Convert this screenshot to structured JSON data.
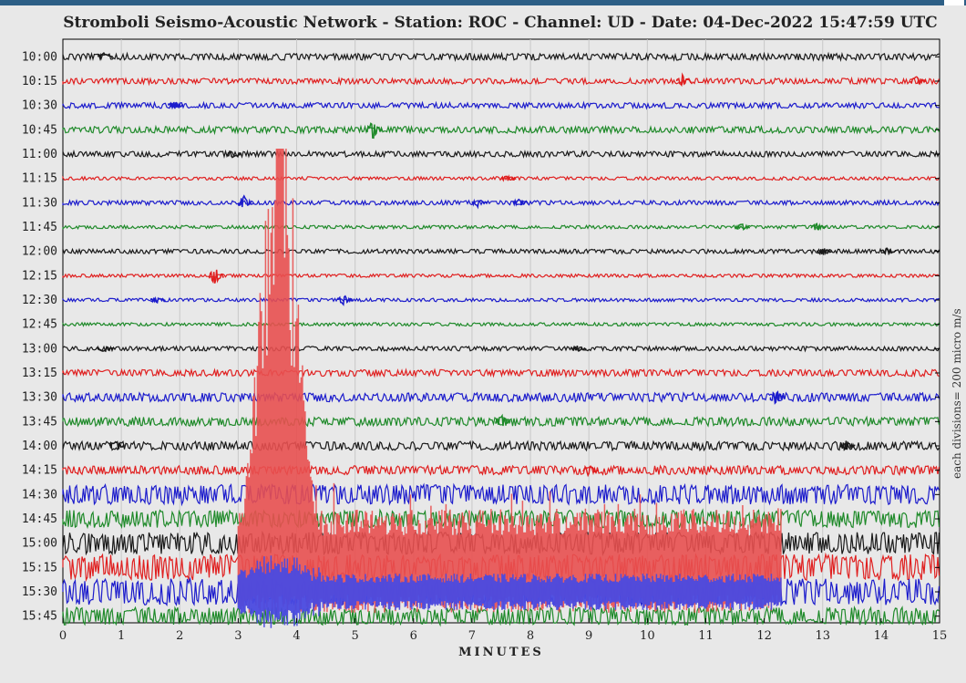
{
  "colors": {
    "black": "#1a1a1a",
    "red": "#e02020",
    "blue": "#1c1ccc",
    "green": "#1f8a2a",
    "event": "#e85050",
    "event_blue": "#4a4ae0",
    "background": "#e8e8e8",
    "grid": "#c8c8c8"
  },
  "chart_data": {
    "type": "line",
    "title": "Stromboli Seismo-Acoustic Network - Station: ROC - Channel: UD - Date: 04-Dec-2022 15:47:59 UTC",
    "xlabel": "MINUTES",
    "ylabel": "",
    "side_label": "each divisions= 200 micro m/s",
    "xlim": [
      0,
      15
    ],
    "x_ticks": [
      "0",
      "1",
      "2",
      "3",
      "4",
      "5",
      "6",
      "7",
      "8",
      "9",
      "10",
      "11",
      "12",
      "13",
      "14",
      "15"
    ],
    "grid": true,
    "traces": [
      {
        "label": "10:00",
        "color": "black",
        "amplitude": 3
      },
      {
        "label": "10:15",
        "color": "red",
        "amplitude": 2.5
      },
      {
        "label": "10:30",
        "color": "blue",
        "amplitude": 2.5
      },
      {
        "label": "10:45",
        "color": "green",
        "amplitude": 3
      },
      {
        "label": "11:00",
        "color": "black",
        "amplitude": 2.5
      },
      {
        "label": "11:15",
        "color": "red",
        "amplitude": 1.5
      },
      {
        "label": "11:30",
        "color": "blue",
        "amplitude": 2
      },
      {
        "label": "11:45",
        "color": "green",
        "amplitude": 1.5
      },
      {
        "label": "12:00",
        "color": "black",
        "amplitude": 2
      },
      {
        "label": "12:15",
        "color": "red",
        "amplitude": 1.5
      },
      {
        "label": "12:30",
        "color": "blue",
        "amplitude": 1.5
      },
      {
        "label": "12:45",
        "color": "green",
        "amplitude": 1.5
      },
      {
        "label": "13:00",
        "color": "black",
        "amplitude": 2
      },
      {
        "label": "13:15",
        "color": "red",
        "amplitude": 3
      },
      {
        "label": "13:30",
        "color": "blue",
        "amplitude": 4
      },
      {
        "label": "13:45",
        "color": "green",
        "amplitude": 4
      },
      {
        "label": "14:00",
        "color": "black",
        "amplitude": 4
      },
      {
        "label": "14:15",
        "color": "red",
        "amplitude": 4
      },
      {
        "label": "14:30",
        "color": "blue",
        "amplitude": 9
      },
      {
        "label": "14:45",
        "color": "green",
        "amplitude": 8
      },
      {
        "label": "15:00",
        "color": "black",
        "amplitude": 10
      },
      {
        "label": "15:15",
        "color": "red",
        "amplitude": 12
      },
      {
        "label": "15:30",
        "color": "blue",
        "amplitude": 12
      },
      {
        "label": "15:45",
        "color": "green",
        "amplitude": 8
      }
    ],
    "events": [
      {
        "trace": "10:00",
        "minute": 0.7,
        "amp": 5
      },
      {
        "trace": "10:15",
        "minute": 10.6,
        "amp": 7
      },
      {
        "trace": "10:15",
        "minute": 14.6,
        "amp": 7
      },
      {
        "trace": "10:30",
        "minute": 1.9,
        "amp": 6
      },
      {
        "trace": "10:45",
        "minute": 5.3,
        "amp": 12
      },
      {
        "trace": "11:00",
        "minute": 2.9,
        "amp": 6
      },
      {
        "trace": "11:15",
        "minute": 7.6,
        "amp": 4
      },
      {
        "trace": "11:30",
        "minute": 3.1,
        "amp": 9
      },
      {
        "trace": "11:30",
        "minute": 7.1,
        "amp": 5
      },
      {
        "trace": "11:30",
        "minute": 7.8,
        "amp": 5
      },
      {
        "trace": "11:45",
        "minute": 11.6,
        "amp": 5
      },
      {
        "trace": "11:45",
        "minute": 12.9,
        "amp": 5
      },
      {
        "trace": "12:00",
        "minute": 13.0,
        "amp": 5
      },
      {
        "trace": "12:00",
        "minute": 14.1,
        "amp": 4
      },
      {
        "trace": "12:15",
        "minute": 2.6,
        "amp": 10
      },
      {
        "trace": "12:30",
        "minute": 1.6,
        "amp": 4
      },
      {
        "trace": "12:30",
        "minute": 4.8,
        "amp": 7
      },
      {
        "trace": "13:00",
        "minute": 0.7,
        "amp": 4
      },
      {
        "trace": "13:00",
        "minute": 8.8,
        "amp": 4
      },
      {
        "trace": "13:30",
        "minute": 12.2,
        "amp": 9
      },
      {
        "trace": "13:45",
        "minute": 7.5,
        "amp": 9
      },
      {
        "trace": "14:00",
        "minute": 0.9,
        "amp": 7
      },
      {
        "trace": "14:00",
        "minute": 13.4,
        "amp": 7
      },
      {
        "trace": "14:15",
        "minute": 9.0,
        "amp": 7
      }
    ],
    "overlay_event": {
      "description_free": true,
      "start_minute": 3.0,
      "end_minute": 12.3,
      "peak_minute": 3.7,
      "segments": [
        {
          "from": 3.0,
          "to": 12.3,
          "color": "event"
        },
        {
          "from": 3.0,
          "to": 12.3,
          "color": "event_blue"
        }
      ]
    }
  }
}
